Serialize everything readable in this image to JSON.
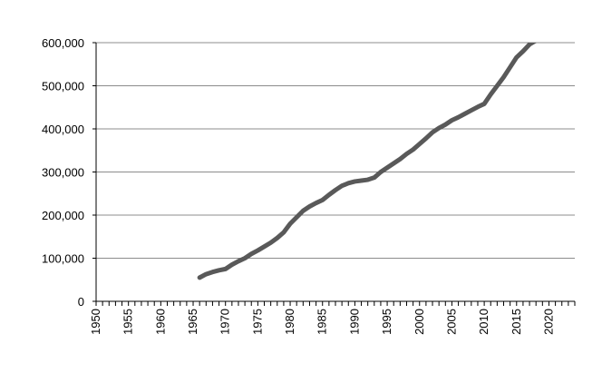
{
  "chart_data": {
    "type": "line",
    "title": "",
    "xlabel": "",
    "ylabel": "",
    "xlim": [
      1950,
      2024
    ],
    "ylim": [
      0,
      600000
    ],
    "grid": "horizontal",
    "legend": "none",
    "x_major_ticks": [
      1950,
      1955,
      1960,
      1965,
      1970,
      1975,
      1980,
      1985,
      1990,
      1995,
      2000,
      2005,
      2010,
      2015,
      2020
    ],
    "x_tick_labels": [
      "1950",
      "1955",
      "1960",
      "1965",
      "1970",
      "1975",
      "1980",
      "1985",
      "1990",
      "1995",
      "2000",
      "2005",
      "2010",
      "2015",
      "2020"
    ],
    "y_ticks": [
      0,
      100000,
      200000,
      300000,
      400000,
      500000,
      600000
    ],
    "y_tick_labels": [
      "0",
      "100,000",
      "200,000",
      "300,000",
      "400,000",
      "500,000",
      "600,000"
    ],
    "series": [
      {
        "color": "#595959",
        "points": [
          [
            1966,
            55000
          ],
          [
            1967,
            63000
          ],
          [
            1968,
            68000
          ],
          [
            1969,
            72000
          ],
          [
            1970,
            75000
          ],
          [
            1971,
            85000
          ],
          [
            1972,
            93000
          ],
          [
            1973,
            100000
          ],
          [
            1974,
            110000
          ],
          [
            1975,
            118000
          ],
          [
            1976,
            127000
          ],
          [
            1977,
            136000
          ],
          [
            1978,
            147000
          ],
          [
            1979,
            160000
          ],
          [
            1980,
            180000
          ],
          [
            1981,
            195000
          ],
          [
            1982,
            210000
          ],
          [
            1983,
            220000
          ],
          [
            1984,
            228000
          ],
          [
            1985,
            235000
          ],
          [
            1986,
            247000
          ],
          [
            1987,
            258000
          ],
          [
            1988,
            268000
          ],
          [
            1989,
            274000
          ],
          [
            1990,
            278000
          ],
          [
            1991,
            280000
          ],
          [
            1992,
            282000
          ],
          [
            1993,
            287000
          ],
          [
            1994,
            300000
          ],
          [
            1995,
            310000
          ],
          [
            1996,
            320000
          ],
          [
            1997,
            330000
          ],
          [
            1998,
            342000
          ],
          [
            1999,
            352000
          ],
          [
            2000,
            365000
          ],
          [
            2001,
            378000
          ],
          [
            2002,
            392000
          ],
          [
            2003,
            402000
          ],
          [
            2004,
            410000
          ],
          [
            2005,
            420000
          ],
          [
            2006,
            427000
          ],
          [
            2007,
            435000
          ],
          [
            2008,
            443000
          ],
          [
            2009,
            451000
          ],
          [
            2010,
            458000
          ],
          [
            2011,
            480000
          ],
          [
            2012,
            500000
          ],
          [
            2013,
            520000
          ],
          [
            2014,
            543000
          ],
          [
            2015,
            566000
          ],
          [
            2016,
            580000
          ],
          [
            2017,
            596000
          ],
          [
            2018,
            605000
          ]
        ]
      }
    ]
  }
}
